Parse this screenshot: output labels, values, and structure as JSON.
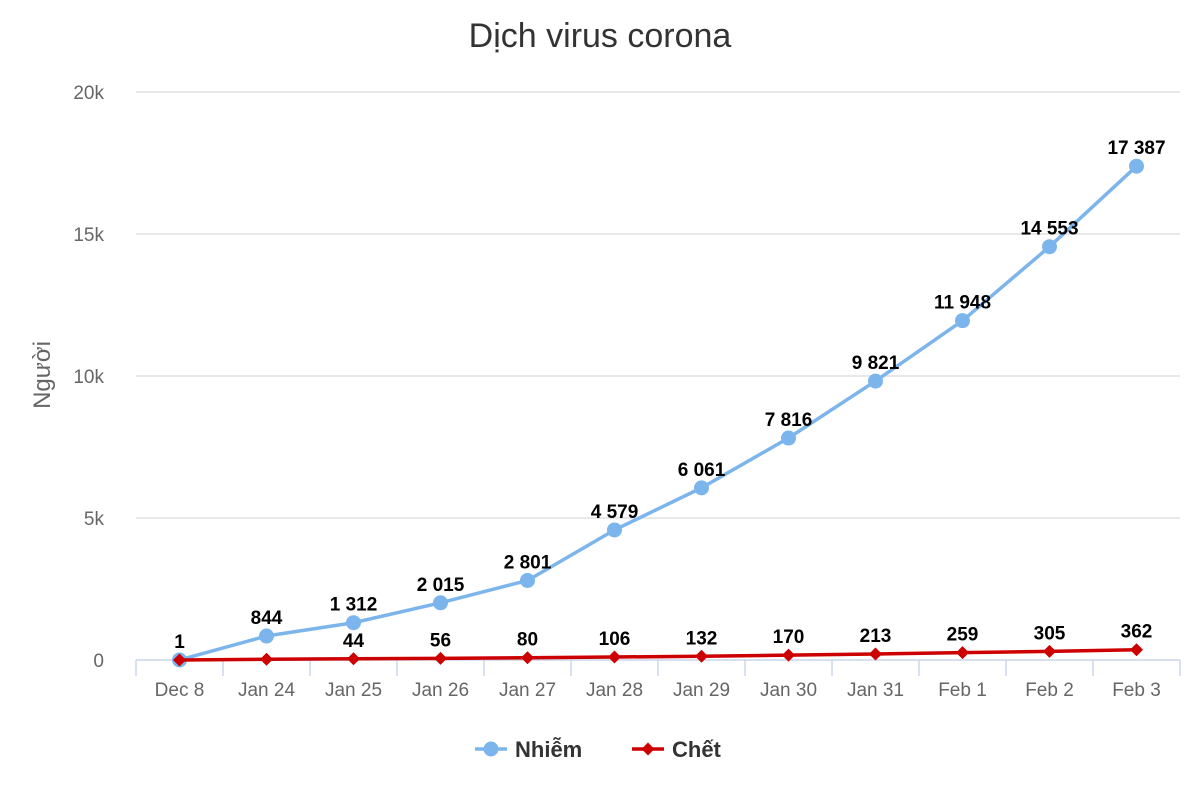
{
  "chart_data": {
    "type": "line",
    "title": "Dịch virus corona",
    "xlabel": "",
    "ylabel": "Người",
    "categories": [
      "Dec 8",
      "Jan 24",
      "Jan 25",
      "Jan 26",
      "Jan 27",
      "Jan 28",
      "Jan 29",
      "Jan 30",
      "Jan 31",
      "Feb 1",
      "Feb 2",
      "Feb 3"
    ],
    "ylim": [
      0,
      20000
    ],
    "yticks": [
      0,
      5000,
      10000,
      15000,
      20000
    ],
    "ytick_labels": [
      "0",
      "5k",
      "10k",
      "15k",
      "20k"
    ],
    "grid": true,
    "legend_position": "bottom",
    "series": [
      {
        "name": "Nhiễm",
        "color": "#7cb5ec",
        "marker": "circle",
        "values": [
          1,
          844,
          1312,
          2015,
          2801,
          4579,
          6061,
          7816,
          9821,
          11948,
          14553,
          17387
        ],
        "labels": [
          "1",
          "844",
          "1 312",
          "2 015",
          "2 801",
          "4 579",
          "6 061",
          "7 816",
          "9 821",
          "11 948",
          "14 553",
          "17 387"
        ]
      },
      {
        "name": "Chết",
        "color": "#cc0000",
        "marker": "diamond",
        "values": [
          0,
          25,
          44,
          56,
          80,
          106,
          132,
          170,
          213,
          259,
          305,
          362
        ],
        "labels": [
          "",
          "",
          "44",
          "56",
          "80",
          "106",
          "132",
          "170",
          "213",
          "259",
          "305",
          "362"
        ]
      }
    ]
  }
}
